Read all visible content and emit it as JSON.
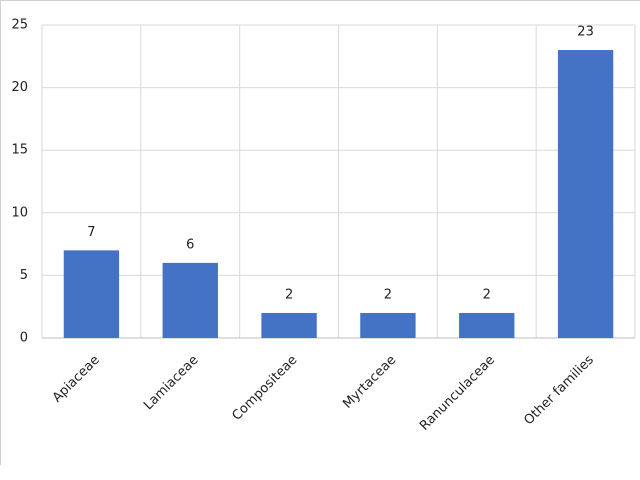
{
  "chart_data": {
    "type": "bar",
    "categories": [
      "Apiaceae",
      "Lamiaceae",
      "Compositeae",
      "Myrtaceae",
      "Ranunculaceae",
      "Other families"
    ],
    "values": [
      7,
      6,
      2,
      2,
      2,
      23
    ],
    "color": "#4472c4",
    "ylim": [
      0,
      25
    ],
    "yticks": [
      0,
      5,
      10,
      15,
      20,
      25
    ],
    "grid": true
  }
}
